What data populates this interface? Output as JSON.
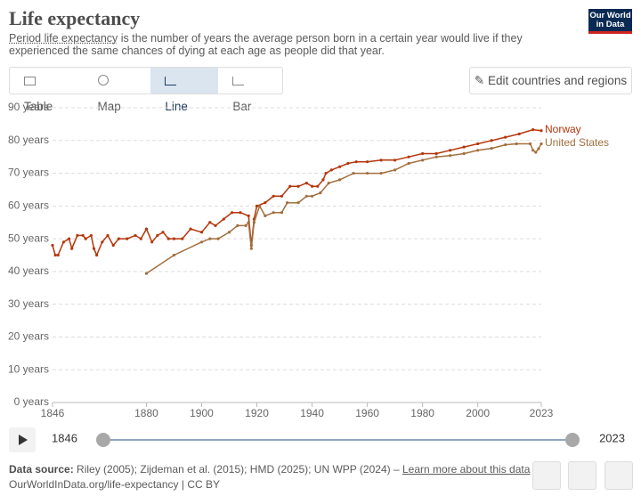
{
  "header": {
    "title": "Life expectancy",
    "subtitle_link": "Period life expectancy",
    "subtitle_rest": " is the number of years the average person born in a certain year would live if they experienced the same chances of dying at each age as people did that year."
  },
  "logo": [
    "Our World",
    "in Data"
  ],
  "tabs": [
    "Table",
    "Map",
    "Line",
    "Bar"
  ],
  "edit_button": "Edit countries and regions",
  "chart_data": {
    "type": "line",
    "xlim": [
      1846,
      2023
    ],
    "ylim": [
      0,
      90
    ],
    "xticks": [
      1846,
      1880,
      1900,
      1920,
      1940,
      1960,
      1980,
      2000,
      2023
    ],
    "yticks": [
      {
        "value": 0,
        "label": "0 years"
      },
      {
        "value": 10,
        "label": "10 years"
      },
      {
        "value": 20,
        "label": "20 years"
      },
      {
        "value": 30,
        "label": "30 years"
      },
      {
        "value": 40,
        "label": "40 years"
      },
      {
        "value": 50,
        "label": "50 years"
      },
      {
        "value": 60,
        "label": "60 years"
      },
      {
        "value": 70,
        "label": "70 years"
      },
      {
        "value": 80,
        "label": "80 years"
      },
      {
        "value": 90,
        "label": "90 years"
      }
    ],
    "grid": true,
    "series": [
      {
        "name": "Norway",
        "color": "#b5360c",
        "x": [
          1846,
          1847,
          1848,
          1850,
          1852,
          1853,
          1855,
          1857,
          1858,
          1860,
          1861,
          1862,
          1864,
          1866,
          1868,
          1870,
          1873,
          1876,
          1878,
          1880,
          1882,
          1884,
          1886,
          1888,
          1890,
          1893,
          1896,
          1900,
          1903,
          1905,
          1908,
          1911,
          1914,
          1917,
          1918,
          1919,
          1920,
          1923,
          1926,
          1929,
          1932,
          1935,
          1938,
          1940,
          1942,
          1944,
          1945,
          1947,
          1950,
          1953,
          1956,
          1960,
          1965,
          1970,
          1975,
          1980,
          1985,
          1990,
          1995,
          2000,
          2005,
          2010,
          2015,
          2020,
          2023
        ],
        "values": [
          48,
          45,
          45,
          49,
          50,
          47,
          51,
          51,
          50,
          51,
          47,
          45,
          49,
          51,
          48,
          50,
          50,
          51,
          50,
          53,
          49,
          51,
          52,
          50,
          50,
          50,
          53,
          52,
          55,
          54,
          56,
          58,
          58,
          57,
          48,
          56,
          60,
          61,
          63,
          63,
          66,
          66,
          67,
          66,
          66,
          68,
          70,
          71,
          72,
          73,
          73.5,
          73.5,
          74,
          74,
          75,
          76,
          76,
          77,
          78,
          79,
          80,
          81,
          82,
          83.3,
          83
        ]
      },
      {
        "name": "United States",
        "color": "#a26f3e",
        "x": [
          1880,
          1890,
          1900,
          1903,
          1906,
          1910,
          1913,
          1916,
          1917,
          1918,
          1919,
          1921,
          1923,
          1926,
          1929,
          1931,
          1935,
          1938,
          1940,
          1943,
          1946,
          1950,
          1955,
          1960,
          1965,
          1970,
          1975,
          1980,
          1985,
          1990,
          1995,
          2000,
          2005,
          2010,
          2014,
          2019,
          2020,
          2021,
          2022,
          2023
        ],
        "values": [
          39.4,
          45,
          49,
          50,
          50,
          52,
          54,
          54,
          55,
          47,
          55,
          60,
          57,
          58,
          58,
          61,
          61,
          63,
          63,
          64,
          67,
          68,
          70,
          70,
          70,
          71,
          73,
          74,
          75,
          75.4,
          76,
          77,
          77.6,
          78.7,
          79,
          79,
          77,
          76.4,
          77.5,
          79
        ]
      }
    ]
  },
  "footer": {
    "source_label": "Data source:",
    "source_text": " Riley (2005); Zijdeman et al. (2015); HMD (2025); UN WPP (2024) – ",
    "learn_more": "Learn more about this data",
    "url": "OurWorldInData.org/life-expectancy | CC BY"
  }
}
